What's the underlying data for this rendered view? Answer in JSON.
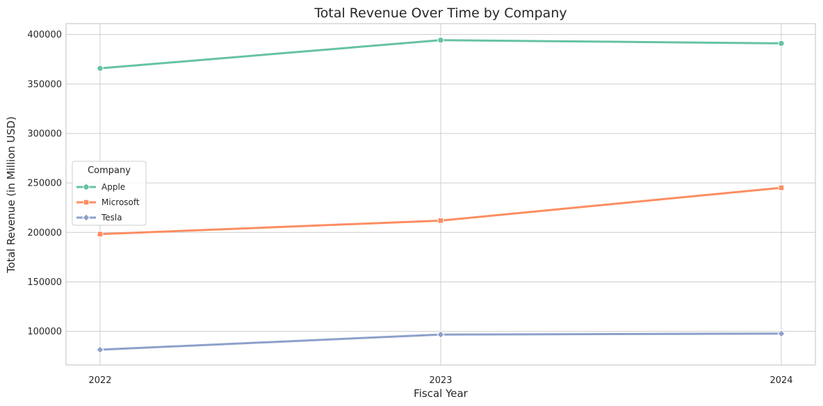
{
  "chart_data": {
    "type": "line",
    "title": "Total Revenue Over Time by Company",
    "xlabel": "Fiscal Year",
    "ylabel": "Total Revenue (in Million USD)",
    "categories": [
      "2022",
      "2023",
      "2024"
    ],
    "ylim": [
      66000,
      411000
    ],
    "yticks": [
      100000,
      150000,
      200000,
      250000,
      300000,
      350000,
      400000
    ],
    "grid": true,
    "legend": {
      "title": "Company",
      "placement": "center-left"
    },
    "series": [
      {
        "name": "Apple",
        "values": [
          365817,
          394328,
          391035
        ],
        "color": "#66c2a5",
        "marker": "circle"
      },
      {
        "name": "Microsoft",
        "values": [
          198270,
          211915,
          245122
        ],
        "color": "#fc8d62",
        "marker": "square"
      },
      {
        "name": "Tesla",
        "values": [
          81462,
          96773,
          97690
        ],
        "color": "#8da0cb",
        "marker": "diamond"
      }
    ]
  }
}
